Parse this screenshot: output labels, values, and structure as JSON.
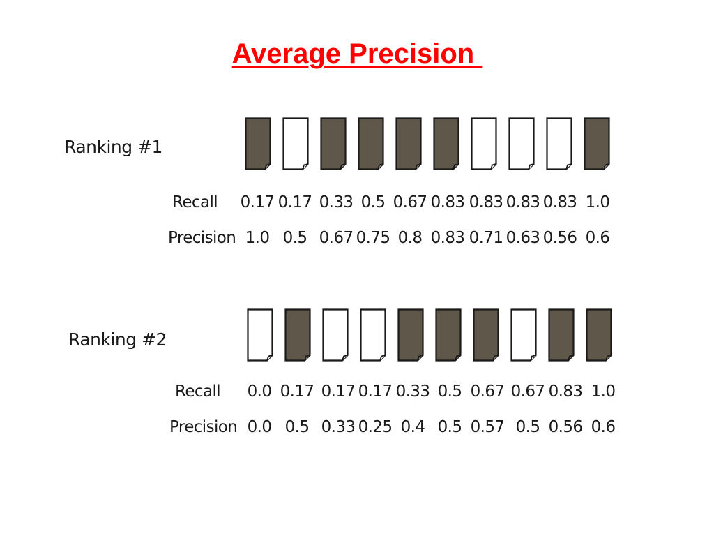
{
  "title": "Average Precision ",
  "colors": {
    "title": "#ff0000",
    "relevant_fill": "#5f584a",
    "nonrelevant_fill": "#ffffff",
    "doc_stroke": "#1a1a1a"
  },
  "labels": {
    "recall": "Recall",
    "precision": "Precision"
  },
  "rankings": [
    {
      "label": "Ranking #1",
      "relevance": [
        true,
        false,
        true,
        true,
        true,
        true,
        false,
        false,
        false,
        true
      ],
      "recall": [
        "0.17",
        "0.17",
        "0.33",
        "0.5",
        "0.67",
        "0.83",
        "0.83",
        "0.83",
        "0.83",
        "1.0"
      ],
      "precision": [
        "1.0",
        "0.5",
        "0.67",
        "0.75",
        "0.8",
        "0.83",
        "0.71",
        "0.63",
        "0.56",
        "0.6"
      ]
    },
    {
      "label": "Ranking #2",
      "relevance": [
        false,
        true,
        false,
        false,
        true,
        true,
        true,
        false,
        true,
        true
      ],
      "recall": [
        "0.0",
        "0.17",
        "0.17",
        "0.17",
        "0.33",
        "0.5",
        "0.67",
        "0.67",
        "0.83",
        "1.0"
      ],
      "precision": [
        "0.0",
        "0.5",
        "0.33",
        "0.25",
        "0.4",
        "0.5",
        "0.57",
        "0.5",
        "0.56",
        "0.6"
      ]
    }
  ]
}
